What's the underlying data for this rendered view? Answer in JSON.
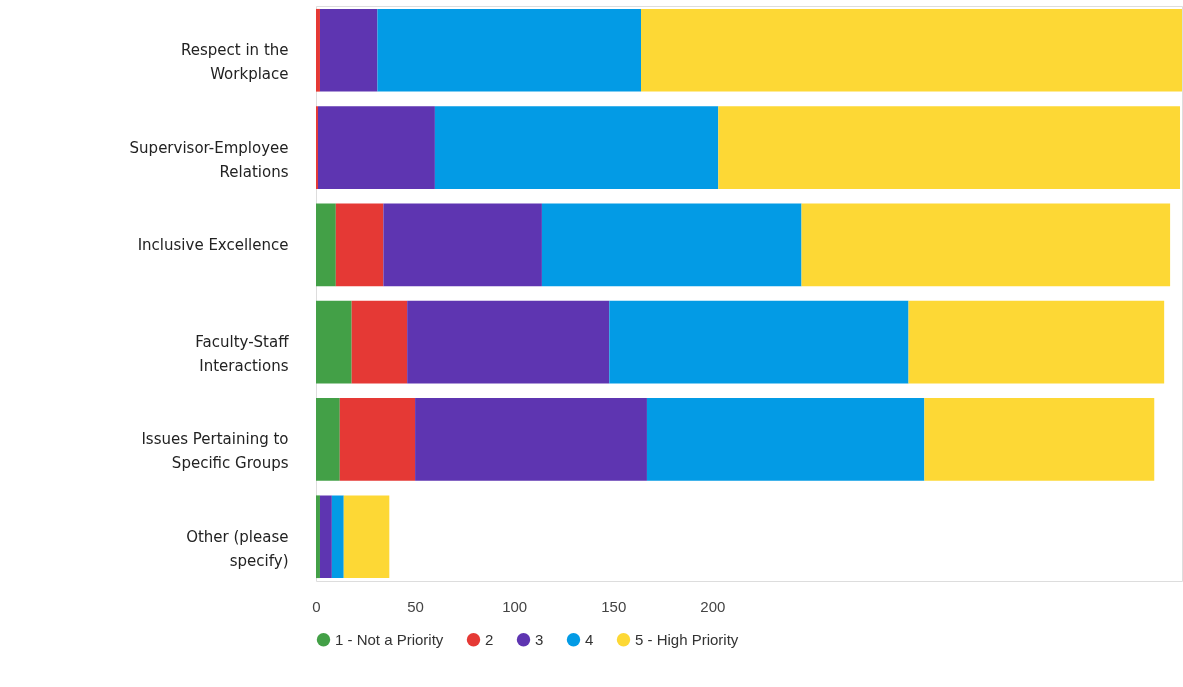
{
  "chart_data": {
    "type": "bar",
    "orientation": "horizontal",
    "stacked": true,
    "categories": [
      "Respect in the Workplace",
      "Supervisor-Employee Relations",
      "Inclusive Excellence",
      "Faculty-Staff Interactions",
      "Issues Pertaining to Specific Groups",
      "Other (please specify)"
    ],
    "series": [
      {
        "name": "1 - Not a Priority",
        "color": "#43a047",
        "values": [
          0,
          0,
          10,
          18,
          12,
          2
        ]
      },
      {
        "name": "2",
        "color": "#e53935",
        "values": [
          2,
          1,
          24,
          28,
          38,
          0
        ]
      },
      {
        "name": "3",
        "color": "#5e35b1",
        "values": [
          29,
          59,
          80,
          102,
          117,
          6
        ]
      },
      {
        "name": "4",
        "color": "#039be5",
        "values": [
          133,
          143,
          131,
          151,
          140,
          6
        ]
      },
      {
        "name": "5 - High Priority",
        "color": "#fdd835",
        "values": [
          273,
          233,
          186,
          129,
          116,
          23
        ]
      }
    ],
    "xlim": [
      0,
      437
    ],
    "xticks": [
      0,
      50,
      100,
      150,
      200
    ],
    "grid": false,
    "legend": "bottom"
  }
}
